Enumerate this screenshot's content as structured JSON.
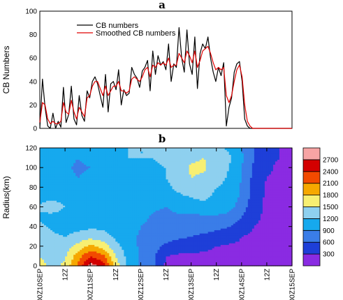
{
  "chart_data": [
    {
      "panel_label": "a",
      "type": "line",
      "ylabel": "CB Numbers",
      "ylim": [
        0,
        100
      ],
      "yticks": [
        "0",
        "20",
        "40",
        "60",
        "80",
        "100"
      ],
      "legend": {
        "placement": "top-left"
      },
      "series": [
        {
          "name": "CB numbers",
          "color": "#000000",
          "x": [
            0,
            1,
            2,
            3,
            4,
            5,
            6,
            7,
            8,
            9,
            10,
            11,
            12,
            13,
            14,
            15,
            16,
            17,
            18,
            19,
            20,
            21,
            22,
            23,
            24,
            25,
            26,
            27,
            28,
            29,
            30,
            31,
            32,
            33,
            34,
            35,
            36,
            37,
            38,
            39,
            40,
            41,
            42,
            43,
            44,
            45,
            46,
            47,
            48,
            49,
            50,
            51,
            52,
            53,
            54,
            55,
            56,
            57,
            58,
            59,
            60,
            61,
            62,
            63,
            64,
            65,
            66,
            67,
            68,
            69,
            70,
            71,
            72,
            73,
            74,
            75,
            76,
            77,
            78,
            79,
            80,
            81,
            82,
            83,
            84,
            85,
            86,
            87,
            88,
            89,
            90,
            91,
            92,
            93,
            94,
            95,
            96
          ],
          "values": [
            0,
            42,
            18,
            2,
            0,
            13,
            0,
            6,
            1,
            35,
            5,
            12,
            36,
            8,
            3,
            28,
            11,
            6,
            32,
            26,
            40,
            44,
            38,
            28,
            18,
            46,
            14,
            38,
            40,
            33,
            50,
            20,
            33,
            28,
            30,
            52,
            46,
            43,
            35,
            49,
            52,
            58,
            32,
            66,
            46,
            62,
            54,
            57,
            50,
            72,
            40,
            55,
            52,
            86,
            60,
            48,
            84,
            55,
            46,
            78,
            34,
            64,
            72,
            68,
            78,
            60,
            48,
            40,
            52,
            45,
            56,
            2,
            18,
            26,
            48,
            55,
            57,
            40,
            8,
            2,
            0,
            0,
            0,
            0,
            0,
            0,
            0,
            0,
            0,
            0,
            0,
            0,
            0,
            0,
            0,
            0,
            0
          ]
        },
        {
          "name": "Smoothed CB numbers",
          "color": "#e00000",
          "x": [
            0,
            1,
            2,
            3,
            4,
            5,
            6,
            7,
            8,
            9,
            10,
            11,
            12,
            13,
            14,
            15,
            16,
            17,
            18,
            19,
            20,
            21,
            22,
            23,
            24,
            25,
            26,
            27,
            28,
            29,
            30,
            31,
            32,
            33,
            34,
            35,
            36,
            37,
            38,
            39,
            40,
            41,
            42,
            43,
            44,
            45,
            46,
            47,
            48,
            49,
            50,
            51,
            52,
            53,
            54,
            55,
            56,
            57,
            58,
            59,
            60,
            61,
            62,
            63,
            64,
            65,
            66,
            67,
            68,
            69,
            70,
            71,
            72,
            73,
            74,
            75,
            76,
            77,
            78,
            79,
            80,
            81,
            82,
            83,
            84,
            85,
            86,
            87,
            88,
            89,
            90,
            91,
            92,
            93,
            94,
            95,
            96
          ],
          "values": [
            5,
            22,
            20,
            8,
            4,
            6,
            4,
            4,
            6,
            22,
            14,
            12,
            24,
            14,
            8,
            18,
            14,
            10,
            26,
            28,
            36,
            40,
            40,
            34,
            28,
            36,
            28,
            32,
            36,
            36,
            40,
            32,
            32,
            30,
            32,
            42,
            44,
            42,
            40,
            44,
            50,
            52,
            44,
            54,
            52,
            56,
            54,
            56,
            54,
            60,
            52,
            54,
            54,
            64,
            60,
            56,
            66,
            62,
            56,
            66,
            52,
            58,
            66,
            68,
            70,
            64,
            56,
            50,
            52,
            50,
            52,
            28,
            22,
            28,
            40,
            50,
            54,
            44,
            20,
            6,
            2,
            0,
            0,
            0,
            0,
            0,
            0,
            0,
            0,
            0,
            0,
            0,
            0,
            0,
            0,
            0,
            0
          ]
        }
      ]
    },
    {
      "panel_label": "b",
      "type": "heatmap",
      "ylabel": "Radius(km)",
      "ylim": [
        0,
        120
      ],
      "yticks": [
        "0",
        "20",
        "40",
        "60",
        "80",
        "100",
        "120"
      ],
      "xticks": [
        "00Z10SEP",
        "12Z",
        "00Z11SEP",
        "12Z",
        "00Z12SEP",
        "12Z",
        "00Z13SEP",
        "12Z",
        "00Z14SEP",
        "12Z",
        "00Z15SEP"
      ],
      "colorbar": {
        "placement": "right",
        "labels": [
          "300",
          "600",
          "900",
          "1200",
          "1500",
          "1800",
          "2100",
          "2400",
          "2700"
        ],
        "colors": [
          "#8a2be2",
          "#1e3fd8",
          "#3a7de8",
          "#16a9ee",
          "#8ed0ef",
          "#f7ef72",
          "#f6a800",
          "#f24a00",
          "#d30000",
          "#f7a4a4"
        ]
      },
      "radius_levels_km": [
        0,
        10,
        20,
        30,
        40,
        50,
        60,
        70,
        80,
        90,
        100,
        110,
        120
      ],
      "time_columns": [
        "00Z10SEP",
        "06Z10SEP",
        "12Z10SEP",
        "18Z10SEP",
        "00Z11SEP",
        "06Z11SEP",
        "12Z11SEP",
        "18Z11SEP",
        "00Z12SEP",
        "06Z12SEP",
        "12Z12SEP",
        "18Z12SEP",
        "00Z13SEP",
        "06Z13SEP",
        "12Z13SEP",
        "18Z13SEP",
        "00Z14SEP",
        "06Z14SEP",
        "12Z14SEP",
        "18Z14SEP",
        "00Z15SEP"
      ],
      "values": [
        [
          1700,
          1350,
          1600,
          2150,
          2850,
          2600,
          1700,
          1150,
          850,
          650,
          250,
          250,
          250,
          250,
          250,
          250,
          250,
          250,
          250,
          250,
          250
        ],
        [
          1500,
          1300,
          1450,
          1950,
          2400,
          2200,
          1500,
          1100,
          850,
          650,
          300,
          250,
          250,
          250,
          250,
          250,
          250,
          250,
          250,
          250,
          250
        ],
        [
          1350,
          1250,
          1350,
          1600,
          1900,
          1700,
          1300,
          1050,
          850,
          700,
          550,
          450,
          400,
          350,
          300,
          250,
          250,
          250,
          250,
          250,
          250
        ],
        [
          1400,
          1250,
          1200,
          1300,
          1400,
          1300,
          1150,
          1000,
          850,
          750,
          700,
          650,
          600,
          550,
          500,
          450,
          300,
          250,
          250,
          250,
          250
        ],
        [
          1250,
          1150,
          1100,
          1100,
          1150,
          1150,
          1100,
          1050,
          900,
          800,
          750,
          750,
          700,
          700,
          650,
          600,
          450,
          300,
          250,
          250,
          250
        ],
        [
          1150,
          1100,
          1050,
          1050,
          1100,
          1100,
          1150,
          1100,
          1000,
          850,
          800,
          850,
          800,
          850,
          850,
          800,
          600,
          350,
          250,
          250,
          250
        ],
        [
          1250,
          1350,
          1200,
          1150,
          1100,
          1050,
          1100,
          1150,
          1100,
          950,
          900,
          1000,
          1050,
          1100,
          1100,
          1000,
          750,
          400,
          250,
          250,
          250
        ],
        [
          1100,
          1150,
          1100,
          1050,
          1000,
          1050,
          1150,
          1200,
          1150,
          1050,
          1050,
          1150,
          1200,
          1250,
          1150,
          1050,
          850,
          450,
          250,
          250,
          250
        ],
        [
          1150,
          1100,
          1050,
          1000,
          1000,
          1050,
          1100,
          1150,
          1100,
          1100,
          1150,
          1250,
          1350,
          1300,
          1200,
          1100,
          850,
          450,
          250,
          250,
          250
        ],
        [
          1100,
          1050,
          1000,
          900,
          950,
          1000,
          1050,
          1100,
          1100,
          1150,
          1200,
          1300,
          1500,
          1450,
          1350,
          1150,
          900,
          500,
          300,
          250,
          250
        ],
        [
          1100,
          1050,
          950,
          850,
          900,
          1000,
          1100,
          1150,
          1150,
          1150,
          1200,
          1300,
          1550,
          1550,
          1350,
          1200,
          900,
          550,
          350,
          250,
          250
        ],
        [
          1150,
          1100,
          1000,
          900,
          950,
          1050,
          1150,
          1200,
          1200,
          1200,
          1250,
          1350,
          1450,
          1500,
          1400,
          1250,
          950,
          600,
          350,
          300,
          250
        ],
        [
          1100,
          1100,
          1050,
          1000,
          1050,
          1100,
          1150,
          1200,
          1200,
          1200,
          1200,
          1250,
          1300,
          1300,
          1250,
          1150,
          900,
          600,
          350,
          300,
          250
        ]
      ]
    }
  ]
}
